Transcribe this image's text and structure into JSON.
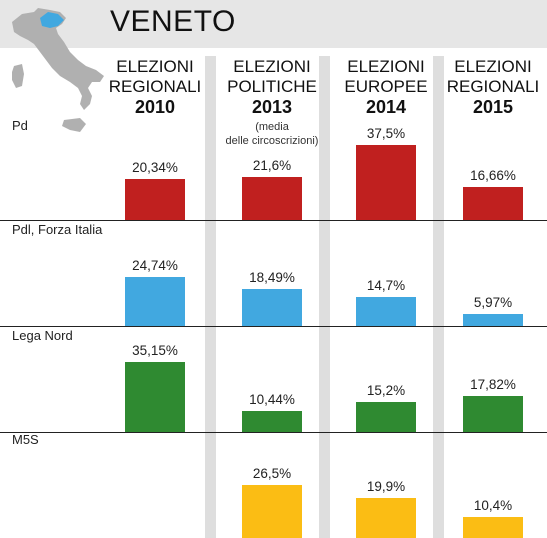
{
  "region": "VENETO",
  "colors": {
    "Pd": "#c0201f",
    "Pdl, Forza Italia": "#41a8e0",
    "Lega Nord": "#2f8a31",
    "M5S": "#fbbd14",
    "veneto_highlight": "#41a8e0",
    "italy_map": "#b0b0b0"
  },
  "columns": [
    {
      "label": "ELEZIONI\nREGIONALI",
      "year": "2010",
      "note": ""
    },
    {
      "label": "ELEZIONI\nPOLITICHE",
      "year": "2013",
      "note": "(media\ndelle circoscrizioni)"
    },
    {
      "label": "ELEZIONI\nEUROPEE",
      "year": "2014",
      "note": ""
    },
    {
      "label": "ELEZIONI\nREGIONALI",
      "year": "2015",
      "note": ""
    }
  ],
  "chart_data": {
    "type": "bar",
    "title": "VENETO",
    "categories": [
      "2010",
      "2013",
      "2014",
      "2015"
    ],
    "series": [
      {
        "name": "Pd",
        "values": [
          20.34,
          21.6,
          37.5,
          16.66
        ],
        "labels": [
          "20,34%",
          "21,6%",
          "37,5%",
          "16,66%"
        ]
      },
      {
        "name": "Pdl, Forza Italia",
        "values": [
          24.74,
          18.49,
          14.7,
          5.97
        ],
        "labels": [
          "24,74%",
          "18,49%",
          "14,7%",
          "5,97%"
        ]
      },
      {
        "name": "Lega Nord",
        "values": [
          35.15,
          10.44,
          15.2,
          17.82
        ],
        "labels": [
          "35,15%",
          "10,44%",
          "15,2%",
          "17,82%"
        ]
      },
      {
        "name": "M5S",
        "values": [
          null,
          26.5,
          19.9,
          10.4
        ],
        "labels": [
          "",
          "26,5%",
          "19,9%",
          "10,4%"
        ]
      }
    ]
  }
}
